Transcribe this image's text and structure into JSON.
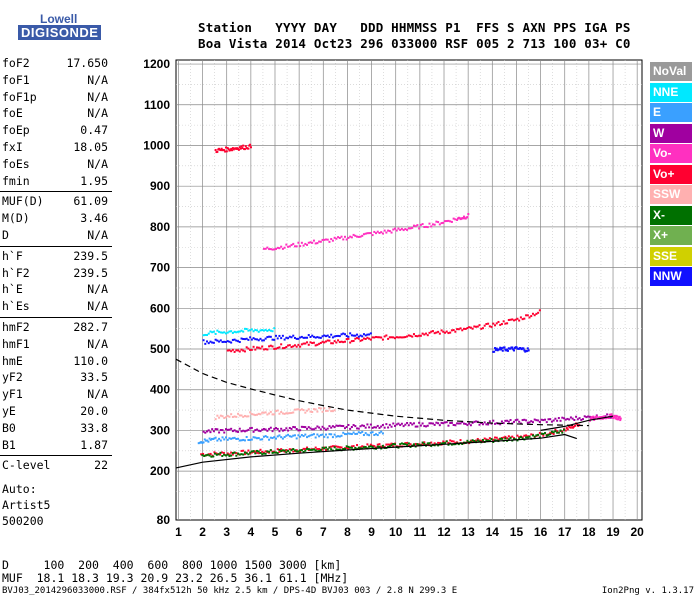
{
  "logo": {
    "top": "Lowell",
    "bottom": "DIGISONDE"
  },
  "header": {
    "row1": "Station   YYYY DAY   DDD HHMMSS P1  FFS S AXN PPS IGA PS",
    "row2": "Boa Vista 2014 Oct23 296 033000 RSF 005 2 713 100 03+ C0"
  },
  "params": [
    {
      "name": "foF2",
      "value": "17.650"
    },
    {
      "name": "foF1",
      "value": "N/A"
    },
    {
      "name": "foF1p",
      "value": "N/A"
    },
    {
      "name": "foE",
      "value": "N/A"
    },
    {
      "name": "foEp",
      "value": "0.47"
    },
    {
      "name": "fxI",
      "value": "18.05"
    },
    {
      "name": "foEs",
      "value": "N/A"
    },
    {
      "name": "fmin",
      "value": "1.95"
    },
    {
      "name": "MUF(D)",
      "value": "61.09"
    },
    {
      "name": "M(D)",
      "value": "3.46"
    },
    {
      "name": "D",
      "value": "N/A"
    },
    {
      "name": "h`F",
      "value": "239.5"
    },
    {
      "name": "h`F2",
      "value": "239.5"
    },
    {
      "name": "h`E",
      "value": "N/A"
    },
    {
      "name": "h`Es",
      "value": "N/A"
    },
    {
      "name": "hmF2",
      "value": "282.7"
    },
    {
      "name": "hmF1",
      "value": "N/A"
    },
    {
      "name": "hmE",
      "value": "110.0"
    },
    {
      "name": "yF2",
      "value": "33.5"
    },
    {
      "name": "yF1",
      "value": "N/A"
    },
    {
      "name": "yE",
      "value": "20.0"
    },
    {
      "name": "B0",
      "value": "33.8"
    },
    {
      "name": "B1",
      "value": "1.87"
    },
    {
      "name": "C-level",
      "value": "22"
    }
  ],
  "auto": {
    "line1": "Auto:",
    "line2": "Artist5",
    "line3": "500200"
  },
  "legend": [
    {
      "label": "NoVal",
      "color": "#9a9a9a",
      "text_color": "#ffffff"
    },
    {
      "label": "NNE",
      "color": "#00e8ff",
      "text_color": "#ffffff"
    },
    {
      "label": "E",
      "color": "#3aa0ff",
      "text_color": "#ffffff"
    },
    {
      "label": "W",
      "color": "#a000a0",
      "text_color": "#ffffff"
    },
    {
      "label": "Vo-",
      "color": "#ff30c0",
      "text_color": "#ffffff"
    },
    {
      "label": "Vo+",
      "color": "#ff0030",
      "text_color": "#ffffff"
    },
    {
      "label": "SSW",
      "color": "#ffb0b0",
      "text_color": "#ffffff"
    },
    {
      "label": "X-",
      "color": "#007000",
      "text_color": "#ffffff"
    },
    {
      "label": "X+",
      "color": "#70b050",
      "text_color": "#ffffff"
    },
    {
      "label": "SSE",
      "color": "#d0d000",
      "text_color": "#ffffff"
    },
    {
      "label": "NNW",
      "color": "#1010ff",
      "text_color": "#ffffff"
    }
  ],
  "muf_table": {
    "d_row": "D     100  200  400  600  800 1000 1500 3000 [km]",
    "muf_row": "MUF  18.1 18.3 19.3 20.9 23.2 26.5 36.1 61.1 [MHz]"
  },
  "footer": {
    "left": "BVJ03_2014296033000.RSF / 384fx512h 50 kHz 2.5 km / DPS-4D BVJ03 003 / 2.8 N 299.3 E",
    "right": "Ion2Png v. 1.3.17"
  },
  "chart_data": {
    "type": "scatter",
    "x_ticks": [
      1,
      2,
      3,
      4,
      5,
      6,
      7,
      8,
      9,
      10,
      11,
      12,
      13,
      14,
      15,
      16,
      17,
      18,
      19,
      20
    ],
    "y_ticks": [
      80,
      200,
      300,
      400,
      500,
      600,
      700,
      800,
      900,
      1000,
      1100,
      1200
    ],
    "y_tick_labels": [
      "80",
      "200",
      "300",
      "400",
      "500",
      "600",
      "700",
      "800",
      "900",
      "1000",
      "1100",
      "1200"
    ],
    "xlim": [
      0.9,
      20.2
    ],
    "ylim": [
      80,
      1210
    ],
    "grid": true,
    "series": [
      {
        "color": "#ff0030",
        "points": [
          [
            1.9,
            244
          ],
          [
            3,
            246
          ],
          [
            4,
            249
          ],
          [
            5,
            252
          ],
          [
            6,
            255
          ],
          [
            7,
            258
          ],
          [
            8,
            261
          ],
          [
            9,
            264
          ],
          [
            10,
            267
          ],
          [
            11,
            270
          ],
          [
            12,
            273
          ],
          [
            13,
            276
          ],
          [
            14,
            280
          ],
          [
            15,
            285
          ],
          [
            16,
            292
          ],
          [
            17,
            305
          ],
          [
            17.6,
            320
          ]
        ]
      },
      {
        "color": "#007000",
        "points": [
          [
            1.95,
            242
          ],
          [
            3,
            244
          ],
          [
            4,
            247
          ],
          [
            5,
            250
          ],
          [
            6,
            253
          ],
          [
            7,
            256
          ],
          [
            8,
            259
          ],
          [
            9,
            262
          ],
          [
            10,
            265
          ],
          [
            11,
            268
          ],
          [
            12,
            271
          ],
          [
            13,
            274
          ],
          [
            14,
            278
          ],
          [
            15,
            283
          ],
          [
            16,
            290
          ],
          [
            17,
            302
          ]
        ]
      },
      {
        "color": "#ff0030",
        "points": [
          [
            3,
            498
          ],
          [
            4,
            503
          ],
          [
            5,
            508
          ],
          [
            6,
            513
          ],
          [
            7,
            518
          ],
          [
            8,
            523
          ],
          [
            9,
            528
          ],
          [
            10,
            533
          ],
          [
            11,
            539
          ],
          [
            12,
            545
          ],
          [
            13,
            552
          ],
          [
            14,
            562
          ],
          [
            15,
            575
          ],
          [
            16,
            595
          ]
        ]
      },
      {
        "color": "#ff30c0",
        "points": [
          [
            4.5,
            748
          ],
          [
            5.5,
            755
          ],
          [
            6.5,
            764
          ],
          [
            7.5,
            772
          ],
          [
            8.5,
            782
          ],
          [
            9.5,
            790
          ],
          [
            10.5,
            799
          ],
          [
            11.5,
            809
          ],
          [
            12.5,
            822
          ],
          [
            13,
            830
          ]
        ]
      },
      {
        "color": "#a000a0",
        "points": [
          [
            2,
            300
          ],
          [
            3,
            302
          ],
          [
            4,
            304
          ],
          [
            5,
            305
          ],
          [
            6,
            307
          ],
          [
            7,
            309
          ],
          [
            8,
            311
          ],
          [
            9,
            313
          ],
          [
            10,
            315
          ],
          [
            11,
            317
          ],
          [
            12,
            318
          ],
          [
            13,
            320
          ],
          [
            14,
            322
          ],
          [
            15,
            324
          ],
          [
            16,
            326
          ],
          [
            17,
            330
          ],
          [
            18,
            335
          ],
          [
            19,
            338
          ]
        ]
      },
      {
        "color": "#3aa0ff",
        "points": [
          [
            1.8,
            275
          ],
          [
            2.5,
            280
          ],
          [
            3.5,
            282
          ],
          [
            4.5,
            284
          ],
          [
            5.5,
            287
          ],
          [
            6.5,
            289
          ],
          [
            7.5,
            291
          ],
          [
            8.5,
            294
          ],
          [
            9.5,
            296
          ]
        ]
      },
      {
        "color": "#ffb0b0",
        "points": [
          [
            2.5,
            335
          ],
          [
            3.5,
            340
          ],
          [
            4.5,
            345
          ],
          [
            5.5,
            348
          ],
          [
            6.5,
            352
          ],
          [
            7.5,
            355
          ]
        ]
      },
      {
        "color": "#1010ff",
        "points": [
          [
            2,
            520
          ],
          [
            3,
            522
          ],
          [
            4,
            527
          ],
          [
            5,
            530
          ],
          [
            6,
            532
          ],
          [
            7,
            534
          ],
          [
            8,
            536
          ],
          [
            9,
            538
          ]
        ]
      },
      {
        "color": "#00e8ff",
        "points": [
          [
            2,
            540
          ],
          [
            3,
            545
          ],
          [
            4,
            548
          ],
          [
            5,
            550
          ]
        ]
      },
      {
        "color": "#ff30c0",
        "points": [
          [
            18,
            330
          ],
          [
            18.5,
            335
          ],
          [
            19,
            338
          ],
          [
            19.3,
            330
          ]
        ]
      },
      {
        "color": "#ff0030",
        "points": [
          [
            2.5,
            990
          ],
          [
            3,
            993
          ],
          [
            3.5,
            997
          ],
          [
            4,
            1000
          ]
        ]
      },
      {
        "color": "#1010ff",
        "points": [
          [
            14,
            500
          ],
          [
            14.5,
            502
          ],
          [
            15,
            503
          ],
          [
            15.5,
            500
          ]
        ]
      }
    ],
    "curves": [
      {
        "style": "solid",
        "points": [
          [
            0.9,
            208
          ],
          [
            2,
            222
          ],
          [
            4,
            235
          ],
          [
            6,
            244
          ],
          [
            8,
            252
          ],
          [
            10,
            259
          ],
          [
            12,
            266
          ],
          [
            14,
            273
          ],
          [
            16,
            281
          ],
          [
            17,
            290
          ],
          [
            17.5,
            280
          ]
        ]
      },
      {
        "style": "dashed",
        "points": [
          [
            0.9,
            475
          ],
          [
            2,
            440
          ],
          [
            3,
            418
          ],
          [
            4,
            402
          ],
          [
            5,
            387
          ],
          [
            6,
            373
          ],
          [
            7,
            361
          ],
          [
            8,
            350
          ],
          [
            10,
            335
          ],
          [
            12,
            325
          ],
          [
            14,
            318
          ],
          [
            16,
            314
          ],
          [
            18,
            312
          ]
        ]
      },
      {
        "style": "solid",
        "points": [
          [
            16,
            300
          ],
          [
            17,
            310
          ],
          [
            18,
            325
          ],
          [
            19,
            335
          ]
        ]
      }
    ]
  }
}
